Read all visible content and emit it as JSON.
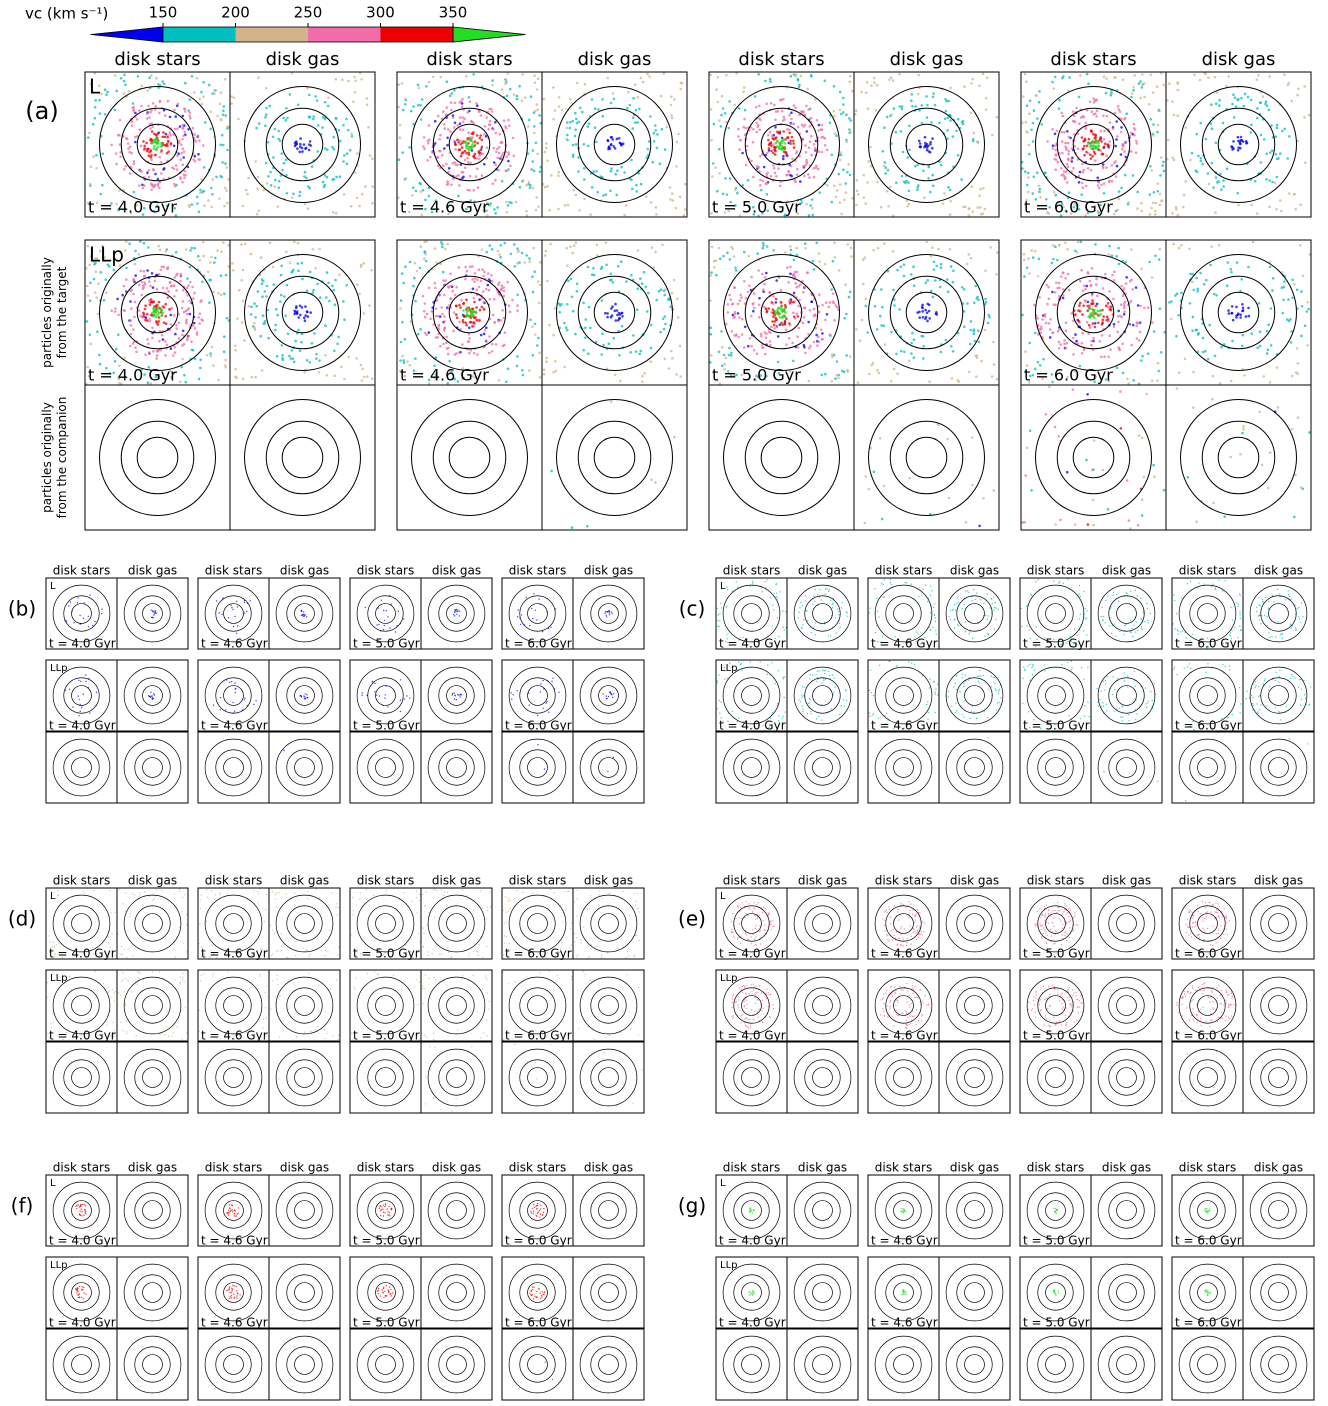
{
  "colorbar": {
    "label": "vc (km s⁻¹)",
    "ticks": [
      150,
      200,
      250,
      300,
      350
    ],
    "colors": [
      "#0000ee",
      "#00bfbf",
      "#d2b48c",
      "#f36ca8",
      "#ee0000",
      "#22dd22"
    ]
  },
  "column_titles": [
    "disk stars",
    "disk gas"
  ],
  "row_labels": [
    "L",
    "LLp"
  ],
  "times": [
    "t = 4.0 Gyr",
    "t = 4.6 Gyr",
    "t = 5.0 Gyr",
    "t = 6.0 Gyr"
  ],
  "side_labels": [
    [
      "particles originally",
      "from the target"
    ],
    [
      "particles originally",
      "from the companion"
    ]
  ],
  "panel_labels": [
    "(a)",
    "(b)",
    "(c)",
    "(d)",
    "(e)",
    "(f)",
    "(g)"
  ]
}
